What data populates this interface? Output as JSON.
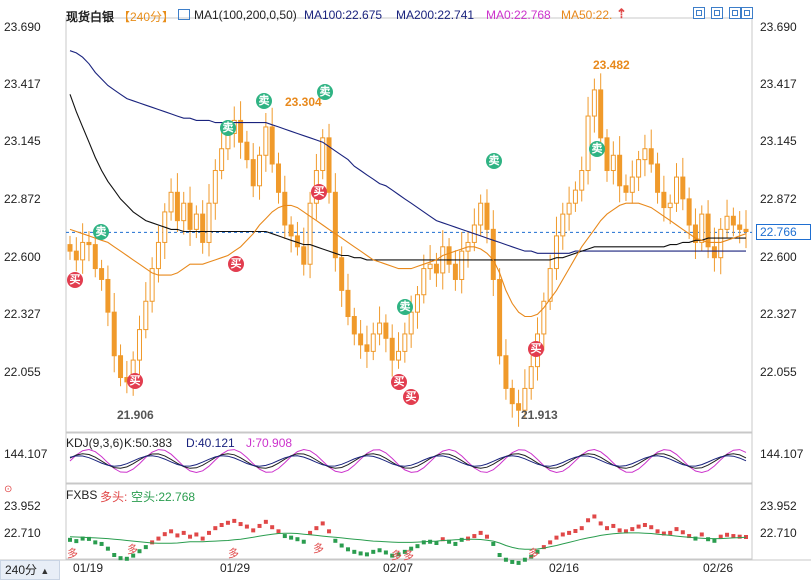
{
  "header": {
    "title": "现货白银",
    "period": "【240分】",
    "ma_label": "MA1(100,200,0,50)",
    "ma100": "MA100:22.675",
    "ma200": "MA200:22.741",
    "ma0": "MA0:22.768",
    "ma50": "MA50:22."
  },
  "kdj_header": {
    "label": "KDJ(9,3,6)",
    "k": "K:50.383",
    "d": "D:40.121",
    "j": "J:70.908"
  },
  "fxbs_header": {
    "label": "FXBS",
    "duo": "多头:",
    "kong": "空头:22.768"
  },
  "y_main_ticks": [
    "23.690",
    "23.417",
    "23.145",
    "22.872",
    "22.600",
    "22.327",
    "22.055"
  ],
  "y_kdj_ticks": [
    "144.107"
  ],
  "y_fxbs_ticks": [
    "23.952",
    "22.710"
  ],
  "current_price": "22.766",
  "period_button": "240分",
  "x_ticks": [
    "01/19",
    "01/29",
    "02/07",
    "02/16",
    "02/26"
  ],
  "annotations": {
    "high1": "23.304",
    "high2": "23.482",
    "low1": "21.906",
    "low2": "21.913"
  },
  "signals": {
    "sell": "卖",
    "buy": "买",
    "duo": "多"
  },
  "colors": {
    "up": "#e04848",
    "down": "#2a9d4f",
    "candle": "#f09a2b",
    "ma100": "#1a237e",
    "ma200": "#111111",
    "ma50": "#e8891c",
    "kdj_k": "#222222",
    "kdj_d": "#1a237e",
    "kdj_j": "#cc33cc",
    "accent": "#1f6fd1"
  },
  "chart_data": {
    "type": "candlestick",
    "title": "现货白银",
    "ylim": [
      21.85,
      23.75
    ],
    "x_dates": [
      "01/19",
      "01/29",
      "02/07",
      "02/16",
      "02/26"
    ],
    "closes": [
      22.68,
      22.64,
      22.72,
      22.71,
      22.6,
      22.55,
      22.4,
      22.2,
      22.1,
      22.08,
      22.18,
      22.32,
      22.45,
      22.6,
      22.72,
      22.86,
      22.95,
      22.82,
      22.9,
      22.78,
      22.85,
      22.72,
      22.9,
      23.05,
      23.15,
      23.22,
      23.28,
      23.18,
      23.1,
      22.98,
      23.12,
      23.25,
      23.08,
      22.95,
      22.8,
      22.75,
      22.7,
      22.62,
      22.9,
      23.05,
      23.2,
      22.95,
      22.65,
      22.5,
      22.38,
      22.3,
      22.25,
      22.22,
      22.3,
      22.35,
      22.28,
      22.18,
      22.22,
      22.3,
      22.4,
      22.48,
      22.6,
      22.62,
      22.58,
      22.7,
      22.62,
      22.55,
      22.68,
      22.72,
      22.8,
      22.9,
      22.78,
      22.55,
      22.2,
      22.05,
      21.98,
      21.95,
      22.05,
      22.15,
      22.3,
      22.45,
      22.6,
      22.75,
      22.85,
      22.9,
      22.96,
      23.05,
      23.3,
      23.42,
      23.2,
      23.05,
      23.12,
      22.98,
      22.95,
      23.02,
      23.1,
      23.15,
      23.08,
      22.95,
      22.88,
      22.9,
      23.02,
      22.92,
      22.8,
      22.72,
      22.85,
      22.7,
      22.65,
      22.78,
      22.84,
      22.8,
      22.78,
      22.77
    ],
    "ma100": [
      23.6,
      23.59,
      23.57,
      23.54,
      23.5,
      23.47,
      23.44,
      23.42,
      23.4,
      23.38,
      23.37,
      23.36,
      23.35,
      23.34,
      23.33,
      23.32,
      23.31,
      23.3,
      23.29,
      23.29,
      23.28,
      23.28,
      23.28,
      23.27,
      23.27,
      23.27,
      23.27,
      23.27,
      23.27,
      23.27,
      23.27,
      23.27,
      23.26,
      23.25,
      23.24,
      23.23,
      23.22,
      23.21,
      23.2,
      23.19,
      23.18,
      23.16,
      23.14,
      23.12,
      23.1,
      23.07,
      23.05,
      23.03,
      23.01,
      22.99,
      22.98,
      22.96,
      22.94,
      22.92,
      22.9,
      22.88,
      22.86,
      22.84,
      22.82,
      22.81,
      22.8,
      22.79,
      22.78,
      22.77,
      22.76,
      22.75,
      22.74,
      22.73,
      22.72,
      22.71,
      22.7,
      22.69,
      22.68,
      22.68,
      22.67,
      22.67,
      22.67,
      22.67,
      22.67,
      22.67,
      22.68,
      22.68,
      22.68,
      22.68,
      22.68,
      22.68,
      22.68,
      22.68,
      22.68,
      22.68,
      22.68,
      22.68,
      22.68,
      22.68,
      22.68,
      22.68,
      22.68,
      22.68,
      22.68,
      22.68,
      22.68,
      22.68,
      22.68,
      22.68,
      22.68,
      22.68,
      22.68,
      22.68
    ],
    "ma200": [
      23.4,
      23.32,
      23.25,
      23.18,
      23.11,
      23.05,
      23.0,
      22.96,
      22.92,
      22.89,
      22.86,
      22.84,
      22.82,
      22.81,
      22.8,
      22.79,
      22.78,
      22.78,
      22.77,
      22.77,
      22.77,
      22.77,
      22.77,
      22.77,
      22.77,
      22.77,
      22.77,
      22.77,
      22.77,
      22.77,
      22.77,
      22.77,
      22.76,
      22.75,
      22.74,
      22.73,
      22.72,
      22.71,
      22.71,
      22.7,
      22.69,
      22.68,
      22.67,
      22.66,
      22.66,
      22.65,
      22.65,
      22.64,
      22.64,
      22.64,
      22.64,
      22.64,
      22.64,
      22.64,
      22.64,
      22.64,
      22.64,
      22.64,
      22.64,
      22.64,
      22.64,
      22.64,
      22.64,
      22.64,
      22.64,
      22.64,
      22.64,
      22.64,
      22.64,
      22.64,
      22.64,
      22.64,
      22.64,
      22.64,
      22.64,
      22.64,
      22.64,
      22.65,
      22.65,
      22.66,
      22.67,
      22.68,
      22.69,
      22.7,
      22.7,
      22.7,
      22.7,
      22.7,
      22.7,
      22.7,
      22.7,
      22.7,
      22.7,
      22.7,
      22.7,
      22.71,
      22.71,
      22.72,
      22.72,
      22.73,
      22.73,
      22.74,
      22.74,
      22.74,
      22.74,
      22.74,
      22.74,
      22.74
    ],
    "ma50": [
      22.78,
      22.77,
      22.76,
      22.75,
      22.74,
      22.73,
      22.72,
      22.7,
      22.68,
      22.66,
      22.64,
      22.62,
      22.6,
      22.58,
      22.57,
      22.57,
      22.57,
      22.58,
      22.6,
      22.62,
      22.62,
      22.62,
      22.63,
      22.64,
      22.65,
      22.66,
      22.68,
      22.7,
      22.73,
      22.76,
      22.8,
      22.83,
      22.86,
      22.88,
      22.89,
      22.89,
      22.88,
      22.86,
      22.84,
      22.82,
      22.8,
      22.78,
      22.76,
      22.74,
      22.72,
      22.7,
      22.68,
      22.66,
      22.64,
      22.63,
      22.62,
      22.61,
      22.6,
      22.6,
      22.6,
      22.61,
      22.62,
      22.63,
      22.64,
      22.66,
      22.67,
      22.68,
      22.69,
      22.7,
      22.7,
      22.69,
      22.67,
      22.64,
      22.58,
      22.5,
      22.44,
      22.4,
      22.38,
      22.38,
      22.39,
      22.42,
      22.46,
      22.5,
      22.55,
      22.6,
      22.65,
      22.7,
      22.74,
      22.78,
      22.82,
      22.85,
      22.87,
      22.89,
      22.9,
      22.9,
      22.9,
      22.89,
      22.88,
      22.86,
      22.84,
      22.82,
      22.8,
      22.78,
      22.76,
      22.74,
      22.73,
      22.72,
      22.72,
      22.72,
      22.73,
      22.74,
      22.75,
      22.76
    ]
  }
}
